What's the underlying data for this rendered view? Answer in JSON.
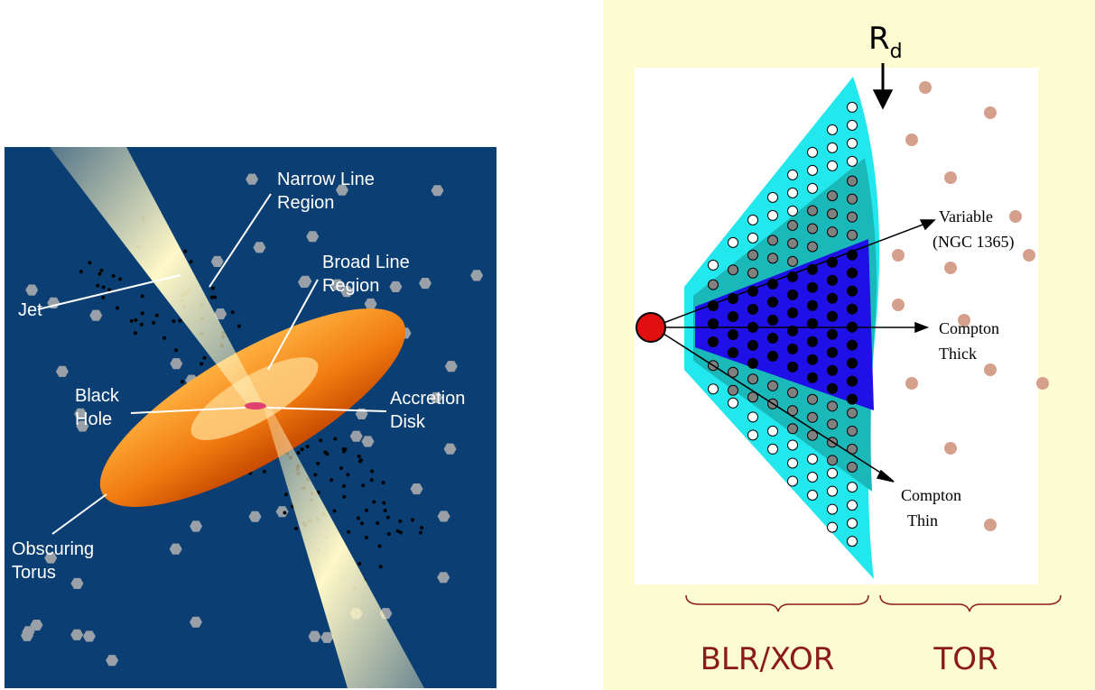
{
  "left_panel": {
    "labels": [
      {
        "lines": [
          "Narrow Line",
          "Region"
        ]
      },
      {
        "lines": [
          "Broad Line",
          "Region"
        ]
      },
      {
        "lines": [
          "Jet"
        ]
      },
      {
        "lines": [
          "Black",
          "Hole"
        ]
      },
      {
        "lines": [
          "Accretion",
          "Disk"
        ]
      },
      {
        "lines": [
          "Obscuring",
          "Torus"
        ]
      }
    ]
  },
  "right_panel": {
    "rd": {
      "main": "R",
      "sub": "d"
    },
    "labels": [
      {
        "lines": [
          "Variable",
          "(NGC 1365)"
        ]
      },
      {
        "lines": [
          "Compton",
          "Thick"
        ]
      },
      {
        "lines": [
          "Compton",
          "Thin"
        ]
      }
    ],
    "regions": [
      "BLR/XOR",
      "TOR"
    ]
  }
}
